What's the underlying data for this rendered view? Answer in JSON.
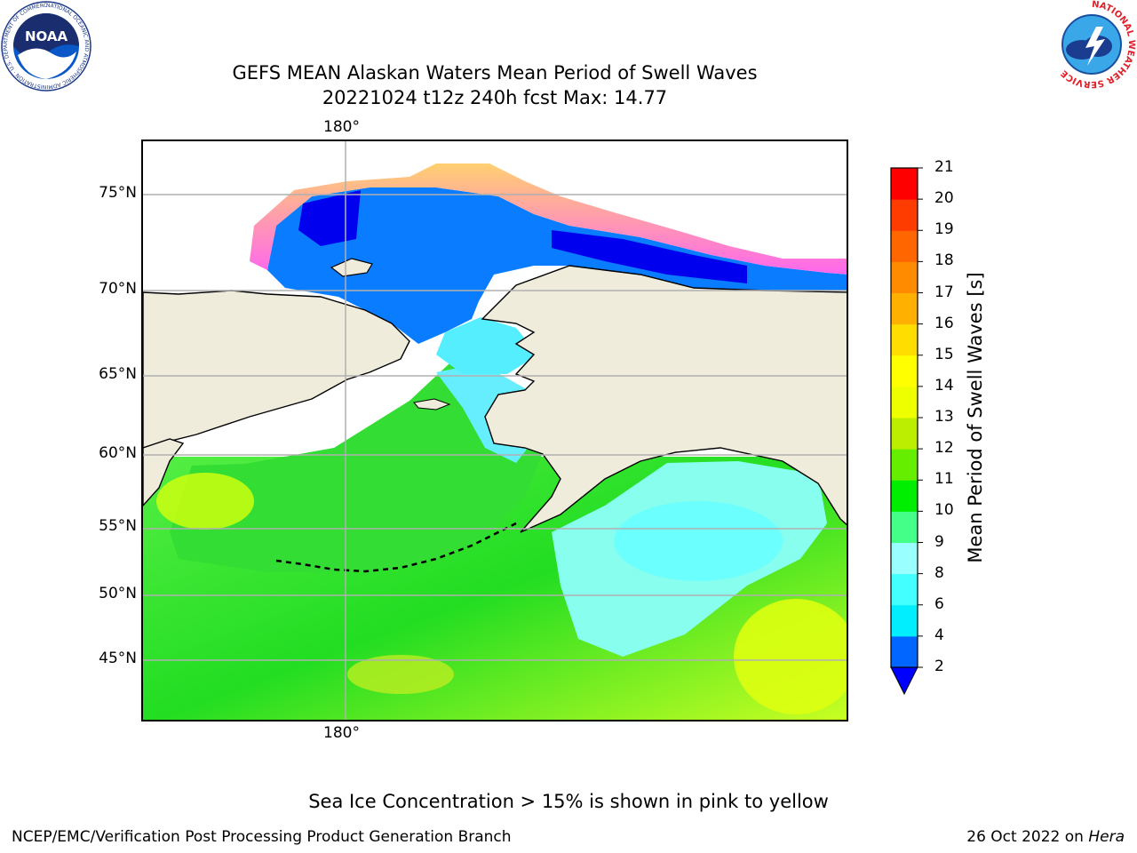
{
  "title": {
    "line1": "GEFS MEAN Alaskan Waters Mean Period of Swell Waves",
    "line2": "20221024 t12z 240h fcst   Max: 14.77"
  },
  "map": {
    "lon_label_top": "180°",
    "lon_label_bottom": "180°",
    "lat_labels": [
      "75°N",
      "70°N",
      "65°N",
      "60°N",
      "55°N",
      "50°N",
      "45°N"
    ],
    "land_color": "#efecdc",
    "gridline_color": "#b0b0b0"
  },
  "colorbar": {
    "label": "Mean Period of Swell Waves [s]",
    "ticks": [
      "21",
      "20",
      "19",
      "18",
      "17",
      "16",
      "15",
      "14",
      "13",
      "12",
      "11",
      "10",
      "9",
      "8",
      "6",
      "4",
      "2"
    ],
    "colors_bottom_to_top": [
      "#0066ff",
      "#00eeff",
      "#44ffff",
      "#99ffff",
      "#44ff88",
      "#00ee00",
      "#66ee00",
      "#bbee00",
      "#eeff00",
      "#ffff00",
      "#ffdd00",
      "#ffb000",
      "#ff8c00",
      "#ff6600",
      "#ff3c00",
      "#ff0000"
    ],
    "underflow_color": "#0000ff"
  },
  "note": "Sea Ice Concentration > 15% is shown in pink to yellow",
  "footer": {
    "left": "NCEP/EMC/Verification Post Processing Product Generation Branch",
    "date": "26 Oct 2022 on",
    "machine": "Hera"
  },
  "logos": {
    "noaa": "NOAA",
    "noaa_ring": "NATIONAL OCEANIC AND ATMOSPHERIC ADMINISTRATION · U.S. DEPARTMENT OF COMMERCE",
    "nws_ring": "NATIONAL WEATHER SERVICE"
  }
}
